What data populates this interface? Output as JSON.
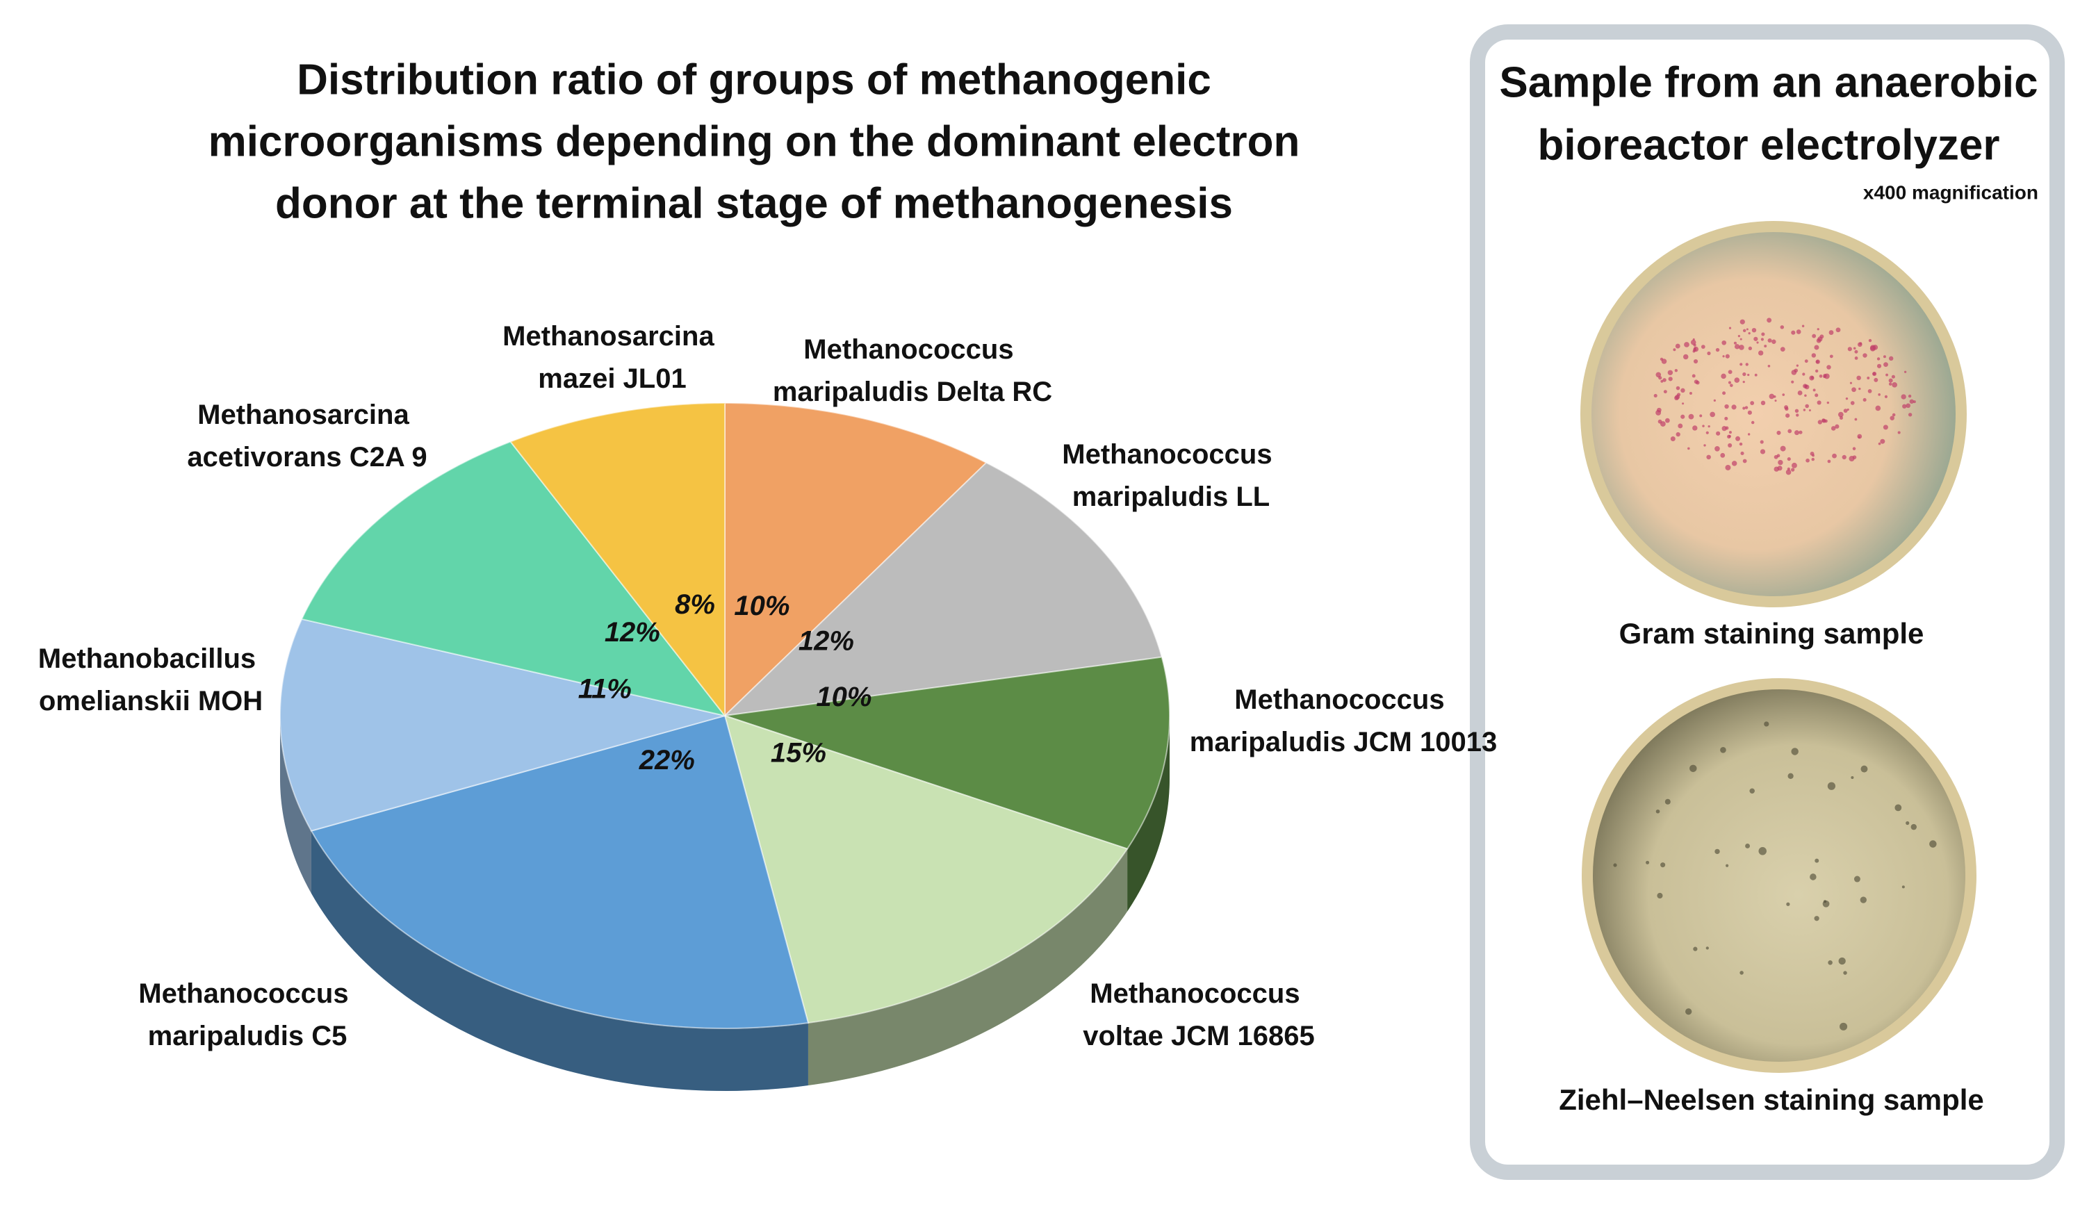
{
  "chart_data": {
    "type": "pie",
    "title": [
      "Distribution ratio of groups of methanogenic",
      "microorganisms depending on the dominant electron",
      "donor at the terminal stage of methanogenesis"
    ],
    "categories": [
      "Methanococcus maripaludis Delta RC",
      "Methanococcus maripaludis LL",
      "Methanococcus maripaludis JCM 10013",
      "Methanococcus voltae JCM 16865",
      "Methanococcus maripaludis C5",
      "Methanobacillus omelianskii MOH",
      "Methanosarcina acetivorans C2A 9",
      "Methanosarcina mazei JL01"
    ],
    "values": [
      10,
      12,
      10,
      15,
      22,
      11,
      12,
      8
    ],
    "value_labels": [
      "10%",
      "12%",
      "10%",
      "15%",
      "22%",
      "11%",
      "12%",
      "8%"
    ],
    "colors": [
      "#f0a164",
      "#bcbcbc",
      "#5c8c46",
      "#c9e2b3",
      "#5d9dd6",
      "#9fc3e8",
      "#62d5aa",
      "#f5c343"
    ]
  },
  "panel": {
    "title": [
      "Sample from an anaerobic",
      "bioreactor electrolyzer"
    ],
    "subtitle": "x400 magnification",
    "images": [
      {
        "caption": "Gram staining sample"
      },
      {
        "caption": "Ziehl–Neelsen staining sample"
      }
    ]
  }
}
